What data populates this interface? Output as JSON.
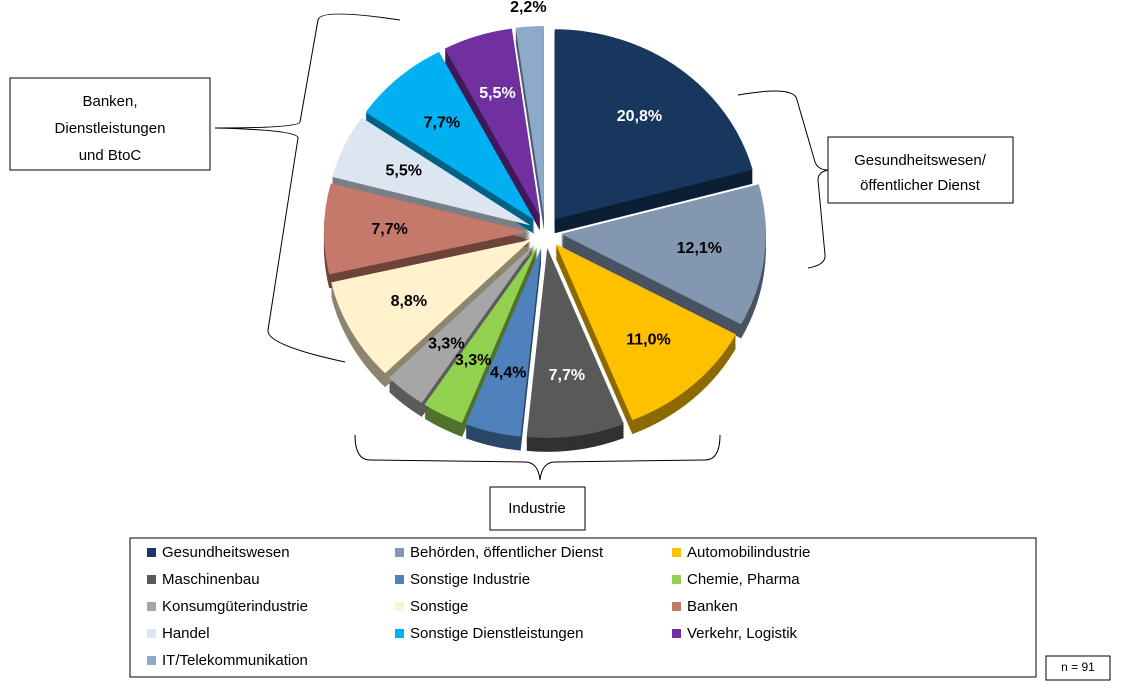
{
  "chart_data": {
    "type": "pie",
    "categories": [
      "Gesundheitswesen",
      "Behörden, öffentlicher Dienst",
      "Automobilindustrie",
      "Maschinenbau",
      "Sonstige Industrie",
      "Chemie, Pharma",
      "Konsumgüterindustrie",
      "Sonstige",
      "Banken",
      "Handel",
      "Sonstige Dienstleistungen",
      "Verkehr, Logistik",
      "IT/Telekommunikation"
    ],
    "values": [
      20.8,
      12.1,
      11.0,
      7.7,
      4.4,
      3.3,
      3.3,
      8.8,
      7.7,
      5.5,
      7.7,
      5.5,
      2.2
    ],
    "value_labels": [
      "20,8%",
      "12,1%",
      "11,0%",
      "7,7%",
      "4,4%",
      "3,3%",
      "3,3%",
      "8,8%",
      "7,7%",
      "5,5%",
      "7,7%",
      "5,5%",
      "2,2%"
    ],
    "colors": [
      "#17375e",
      "#8497b0",
      "#ffc000",
      "#595959",
      "#4f81bd",
      "#92d050",
      "#a6a6a6",
      "#fff2cc",
      "#c4796b",
      "#dce6f1",
      "#00b0f0",
      "#7030a0",
      "#8eaacb"
    ],
    "legend": true,
    "annotations": {
      "banken_group": [
        "Banken,",
        "Dienstleistungen",
        "und BtoC"
      ],
      "gesundheit_group": [
        "Gesundheitswesen/",
        "öffentlicher Dienst"
      ],
      "industrie_group": "Industrie",
      "sample": "n = 91"
    }
  }
}
